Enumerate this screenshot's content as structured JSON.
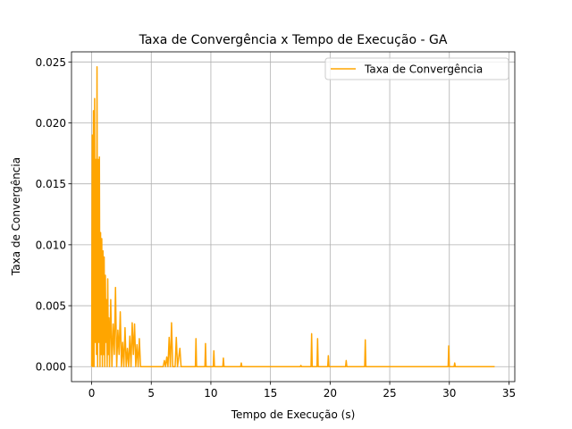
{
  "chart_data": {
    "type": "line",
    "title": "Taxa de Convergência x Tempo de Execução - GA",
    "xlabel": "Tempo de Execução (s)",
    "ylabel": "Taxa de Convergência",
    "legend": "upper right",
    "grid": true,
    "xlim": [
      -1.69,
      35.49
    ],
    "ylim": [
      -0.00123,
      0.02583
    ],
    "xticks": [
      0,
      5,
      10,
      15,
      20,
      25,
      30,
      35
    ],
    "yticks": [
      {
        "value": 0,
        "label": "0.000"
      },
      {
        "value": 0.005,
        "label": "0.005"
      },
      {
        "value": 0.01,
        "label": "0.010"
      },
      {
        "value": 0.015,
        "label": "0.015"
      },
      {
        "value": 0.02,
        "label": "0.020"
      },
      {
        "value": 0.025,
        "label": "0.025"
      }
    ],
    "x": [
      0,
      0.05,
      0.1,
      0.15,
      0.2,
      0.25,
      0.3,
      0.35,
      0.4,
      0.45,
      0.5,
      0.55,
      0.6,
      0.65,
      0.7,
      0.75,
      0.8,
      0.85,
      0.9,
      0.95,
      1.0,
      1.05,
      1.1,
      1.15,
      1.2,
      1.25,
      1.3,
      1.35,
      1.4,
      1.45,
      1.5,
      1.6,
      1.7,
      1.8,
      1.9,
      2.0,
      2.1,
      2.2,
      2.3,
      2.4,
      2.5,
      2.6,
      2.7,
      2.8,
      2.9,
      3.0,
      3.1,
      3.2,
      3.3,
      3.4,
      3.5,
      3.6,
      3.7,
      3.8,
      3.9,
      4.0,
      4.1,
      4.5,
      5.0,
      6.0,
      6.1,
      6.2,
      6.3,
      6.4,
      6.5,
      6.6,
      6.7,
      6.8,
      7.0,
      7.1,
      7.2,
      7.4,
      7.5,
      8.7,
      8.75,
      8.8,
      9.5,
      9.55,
      9.6,
      10.2,
      10.25,
      10.3,
      11.0,
      11.05,
      11.1,
      12.5,
      12.55,
      12.6,
      17.5,
      17.55,
      17.6,
      18.4,
      18.45,
      18.5,
      18.9,
      18.95,
      19.0,
      19.8,
      19.85,
      19.9,
      21.3,
      21.35,
      21.4,
      22.9,
      22.95,
      23.0,
      29.9,
      29.95,
      30.0,
      30.4,
      30.45,
      30.5,
      33.8
    ],
    "series": [
      {
        "name": "Taxa de Convergência",
        "color": "orange",
        "values": [
          0,
          0.019,
          0,
          0.021,
          0,
          0.022,
          0.002,
          0.017,
          0.001,
          0.0246,
          0,
          0.017,
          0.002,
          0.0172,
          0,
          0.011,
          0.001,
          0.0105,
          0,
          0.0095,
          0.001,
          0.009,
          0,
          0.0075,
          0.002,
          0.0055,
          0,
          0.0072,
          0.001,
          0.004,
          0,
          0.0055,
          0,
          0.0035,
          0.001,
          0.0065,
          0,
          0.003,
          0.001,
          0.0045,
          0,
          0.002,
          0,
          0.0032,
          0,
          0.0015,
          0,
          0.0025,
          0,
          0.0036,
          0.001,
          0.0035,
          0,
          0.0018,
          0,
          0.0023,
          0,
          0,
          0,
          0,
          0.0005,
          0,
          0.0008,
          0,
          0.0024,
          0,
          0.0036,
          0,
          0,
          0.0024,
          0,
          0.0015,
          0,
          0,
          0.0023,
          0,
          0,
          0.0019,
          0,
          0,
          0.0013,
          0,
          0,
          0.0007,
          0,
          0,
          0.0003,
          0,
          0,
          0.0001,
          0,
          0,
          0.0027,
          0,
          0,
          0.0023,
          0,
          0,
          0.0009,
          0,
          0,
          0.0005,
          0,
          0,
          0.0022,
          0,
          0,
          0.0017,
          0,
          0,
          0.0003,
          0,
          0
        ]
      }
    ]
  }
}
